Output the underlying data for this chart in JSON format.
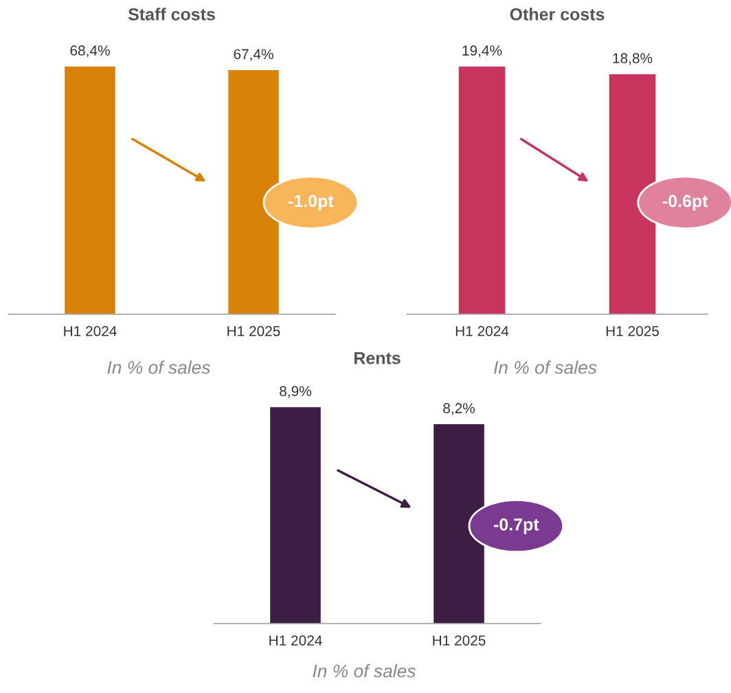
{
  "chart_data": [
    {
      "type": "bar",
      "title": "Staff costs",
      "categories": [
        "H1 2024",
        "H1 2025"
      ],
      "values": [
        68.4,
        67.4
      ],
      "value_labels": [
        "68,4%",
        "67,4%"
      ],
      "color": "#d9820a",
      "annotations": [
        "-1.0pt",
        "In % of sales"
      ]
    },
    {
      "type": "bar",
      "title": "Other costs",
      "categories": [
        "H1 2024",
        "H1 2025"
      ],
      "values": [
        19.4,
        18.8
      ],
      "value_labels": [
        "19,4%",
        "18,8%"
      ],
      "color": "#c8345c",
      "annotations": [
        "-0.6pt",
        "In % of sales"
      ]
    },
    {
      "type": "bar",
      "title": "Rents",
      "categories": [
        "H1 2024",
        "H1 2025"
      ],
      "values": [
        8.9,
        8.2
      ],
      "value_labels": [
        "8,9%",
        "8,2%"
      ],
      "color": "#3c1e44",
      "annotations": [
        "-0.7pt",
        "In % of sales"
      ]
    }
  ]
}
